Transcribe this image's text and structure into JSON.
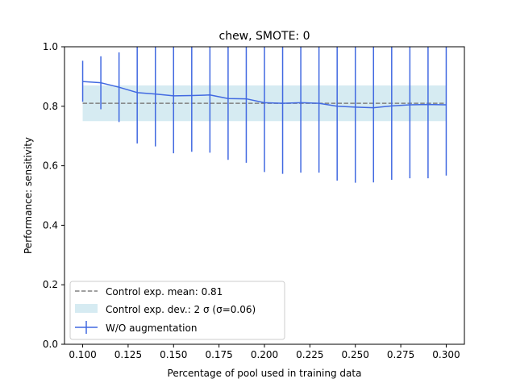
{
  "chart_data": {
    "type": "line",
    "title": "chew, SMOTE: 0",
    "xlabel": "Percentage of pool used in training data",
    "ylabel": "Performance: sensitivity",
    "xlim": [
      0.09,
      0.31
    ],
    "ylim": [
      0.0,
      1.0
    ],
    "xticks": [
      "0.100",
      "0.125",
      "0.150",
      "0.175",
      "0.200",
      "0.225",
      "0.250",
      "0.275",
      "0.300"
    ],
    "yticks": [
      "0.0",
      "0.2",
      "0.4",
      "0.6",
      "0.8",
      "1.0"
    ],
    "grid": false,
    "legend_position": "lower-left",
    "control": {
      "mean": 0.81,
      "band_lower": 0.75,
      "band_upper": 0.87,
      "x_range": [
        0.1,
        0.3
      ],
      "mean_label": "Control exp. mean: 0.81",
      "band_label": "Control exp. dev.: 2 σ (σ=0.06)",
      "mean_color": "#808080",
      "band_color": "#add8e6"
    },
    "series": [
      {
        "name": "W/O augmentation",
        "color": "#4169e1",
        "x": [
          0.1,
          0.11,
          0.12,
          0.13,
          0.14,
          0.15,
          0.16,
          0.17,
          0.18,
          0.19,
          0.2,
          0.21,
          0.22,
          0.23,
          0.24,
          0.25,
          0.26,
          0.27,
          0.28,
          0.29,
          0.3
        ],
        "y": [
          0.883,
          0.879,
          0.864,
          0.846,
          0.841,
          0.835,
          0.836,
          0.838,
          0.826,
          0.825,
          0.812,
          0.81,
          0.812,
          0.81,
          0.8,
          0.797,
          0.795,
          0.801,
          0.805,
          0.806,
          0.805
        ],
        "err_lower": [
          0.815,
          0.79,
          0.747,
          0.675,
          0.665,
          0.642,
          0.647,
          0.644,
          0.62,
          0.61,
          0.579,
          0.573,
          0.577,
          0.577,
          0.55,
          0.543,
          0.544,
          0.553,
          0.558,
          0.558,
          0.567
        ],
        "err_upper": [
          0.953,
          0.968,
          0.981,
          1.0,
          1.0,
          1.0,
          1.0,
          1.0,
          1.0,
          1.0,
          1.0,
          1.0,
          1.0,
          1.0,
          1.0,
          1.0,
          1.0,
          1.0,
          1.0,
          1.0,
          1.0
        ]
      }
    ]
  }
}
